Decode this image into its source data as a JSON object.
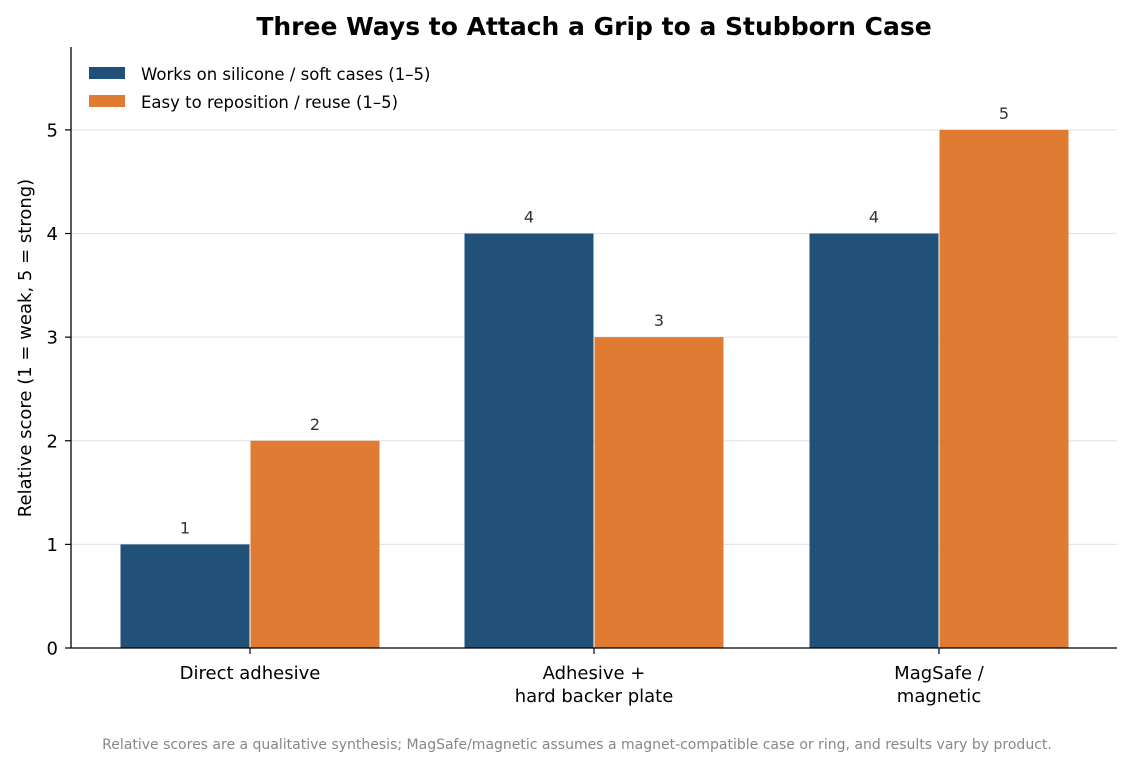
{
  "chart_data": {
    "type": "bar",
    "title": "Three Ways to Attach a Grip to a Stubborn Case",
    "xlabel": "",
    "ylabel": "Relative score (1 = weak, 5 = strong)",
    "categories": [
      [
        "Direct adhesive"
      ],
      [
        "Adhesive +",
        "hard backer plate"
      ],
      [
        "MagSafe /",
        "magnetic"
      ]
    ],
    "series": [
      {
        "name": "Works on silicone / soft cases (1–5)",
        "color": "#215079",
        "values": [
          1,
          4,
          4
        ]
      },
      {
        "name": "Easy to reposition / reuse (1–5)",
        "color": "#e07b33",
        "values": [
          2,
          3,
          5
        ]
      }
    ],
    "ylim": [
      0,
      5.8
    ],
    "yticks": [
      0,
      1,
      2,
      3,
      4,
      5
    ],
    "grid": "horizontal",
    "legend_position": "top-left",
    "data_labels": true
  },
  "footnote": "Relative scores are a qualitative synthesis; MagSafe/magnetic assumes a magnet-compatible case or ring, and results vary by product."
}
